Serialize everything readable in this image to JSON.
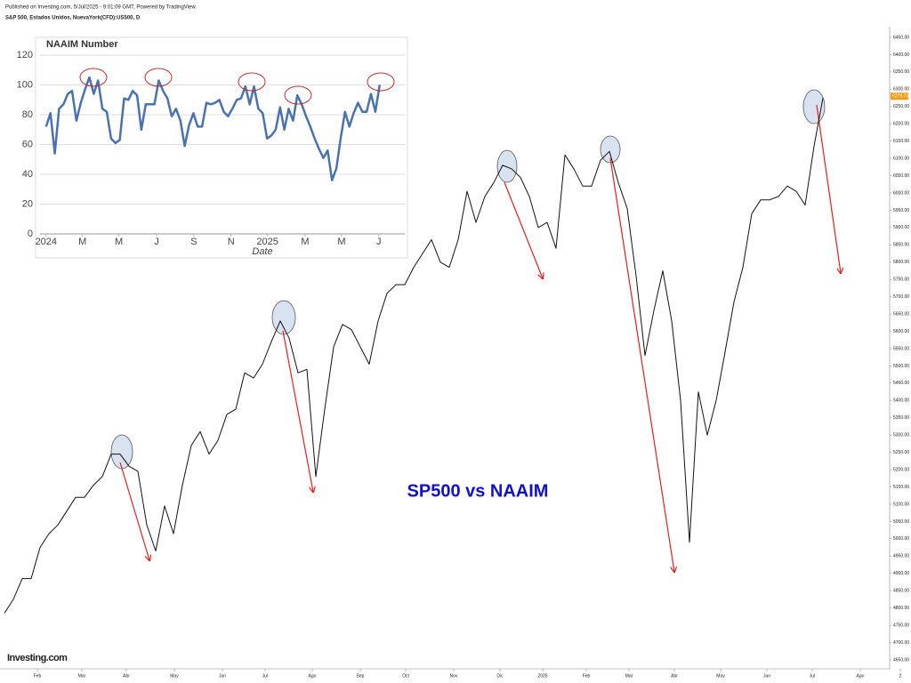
{
  "header": {
    "published": "Published on Investing.com, 5/Jul/2025 - 9:01:09 GMT, Powered by TradingView.",
    "symbol": "S&P 500, Estados Unidos, NuevaYork(CFD):US500, D",
    "logo": "Investing.com",
    "annotation": "SP500 vs NAAIM"
  },
  "chart_data": [
    {
      "type": "line",
      "color": "#111111",
      "values": [
        4785,
        4825,
        4885,
        4885,
        4975,
        5015,
        5040,
        5080,
        5120,
        5120,
        5155,
        5180,
        5245,
        5245,
        5210,
        5195,
        5040,
        4965,
        5095,
        5015,
        5155,
        5270,
        5310,
        5245,
        5285,
        5360,
        5375,
        5480,
        5465,
        5505,
        5570,
        5630,
        5580,
        5480,
        5490,
        5180,
        5375,
        5555,
        5620,
        5605,
        5555,
        5505,
        5630,
        5710,
        5735,
        5735,
        5785,
        5825,
        5865,
        5800,
        5785,
        5865,
        6005,
        5915,
        5990,
        6030,
        6080,
        6070,
        6045,
        5990,
        5900,
        5915,
        5840,
        6110,
        6070,
        6020,
        6020,
        6095,
        6120,
        6030,
        5955,
        5760,
        5530,
        5660,
        5775,
        5630,
        5400,
        4990,
        5425,
        5300,
        5400,
        5540,
        5685,
        5785,
        5940,
        5980,
        5980,
        5990,
        6020,
        6005,
        5965,
        6135,
        6275
      ],
      "last_price": {
        "value": 6279.73,
        "label": "6279.73"
      },
      "xlim": [
        -0.5,
        99.5
      ],
      "xticks": [
        {
          "value": 3.7,
          "label": "Feb"
        },
        {
          "value": 8.7,
          "label": "Mar"
        },
        {
          "value": 13.7,
          "label": "Abr"
        },
        {
          "value": 19.1,
          "label": "May"
        },
        {
          "value": 24.5,
          "label": "Jun"
        },
        {
          "value": 29.3,
          "label": "Jul"
        },
        {
          "value": 34.6,
          "label": "Ago"
        },
        {
          "value": 40,
          "label": "Sep"
        },
        {
          "value": 45.1,
          "label": "Oct"
        },
        {
          "value": 50.5,
          "label": "Nov"
        },
        {
          "value": 55.7,
          "label": "Dic"
        },
        {
          "value": 60.5,
          "label": "2025"
        },
        {
          "value": 65.4,
          "label": "Feb"
        },
        {
          "value": 70.2,
          "label": "Mar"
        },
        {
          "value": 75.3,
          "label": "Abr"
        },
        {
          "value": 80.5,
          "label": "May"
        },
        {
          "value": 85.7,
          "label": "Jun"
        },
        {
          "value": 90.8,
          "label": "Jul"
        },
        {
          "value": 96.2,
          "label": "Ago"
        },
        {
          "value": 100.7,
          "label": "2"
        }
      ],
      "ylim": [
        4650,
        6450
      ],
      "yticks": [
        {
          "value": 6450,
          "label": "6450.00"
        },
        {
          "value": 6400,
          "label": "6400.00"
        },
        {
          "value": 6350,
          "label": "6350.00"
        },
        {
          "value": 6300,
          "label": "6300.00"
        },
        {
          "value": 6250,
          "label": "6250.00"
        },
        {
          "value": 6200,
          "label": "6200.00"
        },
        {
          "value": 6150,
          "label": "6150.00"
        },
        {
          "value": 6100,
          "label": "6100.00"
        },
        {
          "value": 6050,
          "label": "6050.00"
        },
        {
          "value": 6000,
          "label": "6000.00"
        },
        {
          "value": 5950,
          "label": "5950.00"
        },
        {
          "value": 5900,
          "label": "5900.00"
        },
        {
          "value": 5850,
          "label": "5850.00"
        },
        {
          "value": 5800,
          "label": "5800.00"
        },
        {
          "value": 5750,
          "label": "5750.00"
        },
        {
          "value": 5700,
          "label": "5700.00"
        },
        {
          "value": 5650,
          "label": "5650.00"
        },
        {
          "value": 5600,
          "label": "5600.00"
        },
        {
          "value": 5550,
          "label": "5550.00"
        },
        {
          "value": 5500,
          "label": "5500.00"
        },
        {
          "value": 5450,
          "label": "5450.00"
        },
        {
          "value": 5400,
          "label": "5400.00"
        },
        {
          "value": 5350,
          "label": "5350.00"
        },
        {
          "value": 5300,
          "label": "5300.00"
        },
        {
          "value": 5250,
          "label": "5250.00"
        },
        {
          "value": 5200,
          "label": "5200.00"
        },
        {
          "value": 5150,
          "label": "5150.00"
        },
        {
          "value": 5100,
          "label": "5100.00"
        },
        {
          "value": 5050,
          "label": "5050.00"
        },
        {
          "value": 5000,
          "label": "5000.00"
        },
        {
          "value": 4950,
          "label": "4950.00"
        },
        {
          "value": 4900,
          "label": "4900.00"
        },
        {
          "value": 4850,
          "label": "4850.00"
        },
        {
          "value": 4800,
          "label": "4800.00"
        },
        {
          "value": 4750,
          "label": "4750.00"
        },
        {
          "value": 4700,
          "label": "4700.00"
        },
        {
          "value": 4650,
          "label": "4650.00"
        }
      ],
      "axis_side": "right",
      "grid": false
    },
    {
      "type": "line",
      "title": "NAAIM Number",
      "x_label": "Date",
      "color": "#4a72b0",
      "values": [
        72,
        81,
        54,
        84,
        87,
        94,
        96,
        76,
        88,
        97,
        105,
        94,
        103,
        84,
        82,
        64,
        61,
        63,
        91,
        90,
        96,
        93,
        70,
        87,
        87,
        87,
        103,
        96,
        91,
        79,
        84,
        76,
        59,
        73,
        81,
        72,
        72,
        88,
        87,
        88,
        90,
        82,
        79,
        84,
        90,
        91,
        99,
        87,
        99,
        84,
        81,
        64,
        66,
        70,
        85,
        70,
        84,
        76,
        93,
        87,
        79,
        72,
        64,
        57,
        51,
        56,
        36,
        44,
        64,
        82,
        72,
        81,
        88,
        82,
        82,
        94,
        82,
        100
      ],
      "xlim": [
        -1.4,
        82.8
      ],
      "xticks": [
        {
          "value": 0,
          "label": "2024"
        },
        {
          "value": 8.4,
          "label": "M"
        },
        {
          "value": 16.8,
          "label": "M"
        },
        {
          "value": 25.5,
          "label": "J"
        },
        {
          "value": 34.1,
          "label": "S"
        },
        {
          "value": 42.7,
          "label": "N"
        },
        {
          "value": 51.1,
          "label": "2025"
        },
        {
          "value": 59.8,
          "label": "M"
        },
        {
          "value": 68.2,
          "label": "M"
        },
        {
          "value": 76.8,
          "label": "J"
        }
      ],
      "ylim": [
        0,
        120
      ],
      "yticks": [
        0,
        20,
        40,
        60,
        80,
        100,
        120
      ],
      "axis_side": "left",
      "grid": true
    }
  ]
}
